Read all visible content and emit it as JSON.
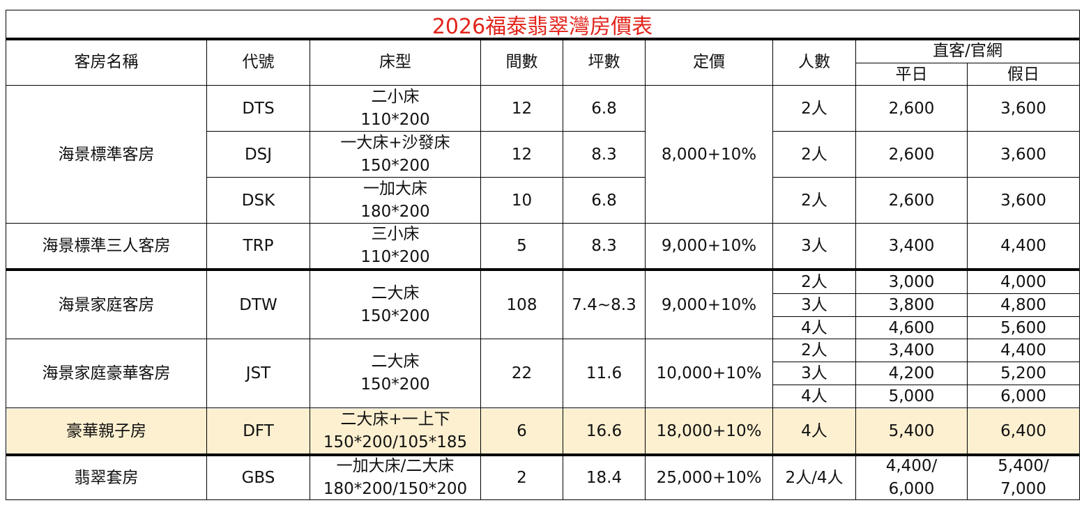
{
  "title": "2026福泰翡翠灣房價表",
  "header": {
    "room_name": "客房名稱",
    "code": "代號",
    "bed": "床型",
    "count": "間數",
    "ping": "坪數",
    "list_price": "定價",
    "people": "人數",
    "direct": "直客/官網",
    "weekday": "平日",
    "holiday": "假日"
  },
  "rows": {
    "dts": {
      "code": "DTS",
      "bed1": "二小床",
      "bed2": "110*200",
      "count": "12",
      "ping": "6.8",
      "people": "2人",
      "weekday": "2,600",
      "holiday": "3,600"
    },
    "dsj": {
      "code": "DSJ",
      "bed1": "一大床+沙發床",
      "bed2": "150*200",
      "count": "12",
      "ping": "8.3",
      "people": "2人",
      "weekday": "2,600",
      "holiday": "3,600"
    },
    "dsk": {
      "code": "DSK",
      "bed1": "一加大床",
      "bed2": "180*200",
      "count": "10",
      "ping": "6.8",
      "people": "2人",
      "weekday": "2,600",
      "holiday": "3,600"
    },
    "std_group": {
      "name": "海景標準客房",
      "price": "8,000+10%"
    },
    "trp": {
      "name": "海景標準三人客房",
      "code": "TRP",
      "bed1": "三小床",
      "bed2": "110*200",
      "count": "5",
      "ping": "8.3",
      "price": "9,000+10%",
      "people": "3人",
      "weekday": "3,400",
      "holiday": "4,400"
    },
    "dtw": {
      "name": "海景家庭客房",
      "code": "DTW",
      "bed1": "二大床",
      "bed2": "150*200",
      "count": "108",
      "ping": "7.4~8.3",
      "price": "9,000+10%",
      "p1": "2人",
      "w1": "3,000",
      "h1": "4,000",
      "p2": "3人",
      "w2": "3,800",
      "h2": "4,800",
      "p3": "4人",
      "w3": "4,600",
      "h3": "5,600"
    },
    "jst": {
      "name": "海景家庭豪華客房",
      "code": "JST",
      "bed1": "二大床",
      "bed2": "150*200",
      "count": "22",
      "ping": "11.6",
      "price": "10,000+10%",
      "p1": "2人",
      "w1": "3,400",
      "h1": "4,400",
      "p2": "3人",
      "w2": "4,200",
      "h2": "5,200",
      "p3": "4人",
      "w3": "5,000",
      "h3": "6,000"
    },
    "dft": {
      "name": "豪華親子房",
      "code": "DFT",
      "bed1": "二大床+一上下",
      "bed2": "150*200/105*185",
      "count": "6",
      "ping": "16.6",
      "price": "18,000+10%",
      "people": "4人",
      "weekday": "5,400",
      "holiday": "6,400",
      "highlight": "#fdf0d0"
    },
    "gbs": {
      "name": "翡翠套房",
      "code": "GBS",
      "bed1": "一加大床/二大床",
      "bed2": "180*200/150*200",
      "count": "2",
      "ping": "18.4",
      "price": "25,000+10%",
      "people": "2人/4人",
      "w1": "4,400/",
      "w2": "6,000",
      "h1": "5,400/",
      "h2": "7,000"
    }
  },
  "colors": {
    "title": "#e2231a",
    "highlight": "#fdf0d0",
    "grid": "#000000"
  }
}
